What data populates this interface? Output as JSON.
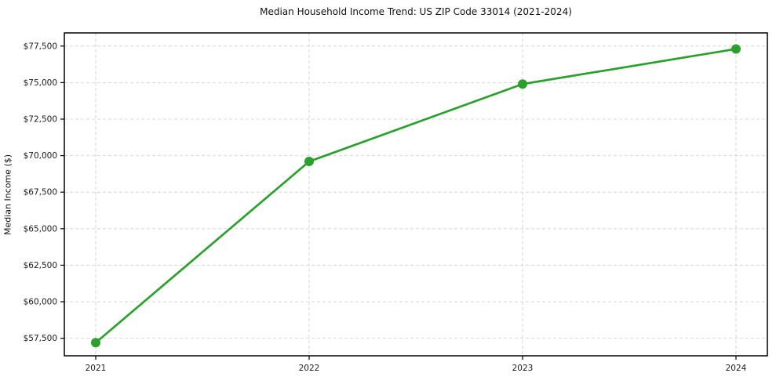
{
  "figure": {
    "background": "#ffffff"
  },
  "chart_data": {
    "type": "line",
    "title": "Median Household Income Trend: US ZIP Code 33014 (2021-2024)",
    "xlabel": "",
    "ylabel": "Median Income ($)",
    "categories": [
      "2021",
      "2022",
      "2023",
      "2024"
    ],
    "series": [
      {
        "name": "Median Household Income",
        "values": [
          57200,
          69600,
          74900,
          77300
        ],
        "color": "#2ca02c",
        "marker": "circle"
      }
    ],
    "ylim": [
      56300,
      78400
    ],
    "yticks": {
      "values": [
        57500,
        60000,
        62500,
        65000,
        67500,
        70000,
        72500,
        75000,
        77500
      ],
      "labels": [
        "$57,500",
        "$60,000",
        "$62,500",
        "$65,000",
        "$67,500",
        "$70,000",
        "$72,500",
        "$75,000",
        "$77,500"
      ]
    },
    "xticks": {
      "labels": [
        "2021",
        "2022",
        "2023",
        "2024"
      ]
    },
    "grid": {
      "show": true,
      "style": "dashed",
      "color": "#d6d6d6"
    },
    "legend": "none",
    "axis_color": "#000000",
    "tick_label_color": "#1a1a1a"
  }
}
